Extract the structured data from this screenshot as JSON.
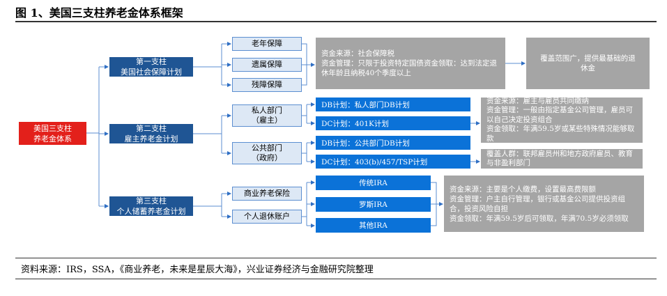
{
  "title": "图 1、美国三支柱养老金体系框架",
  "root": "美国三支柱\n养老金体系",
  "pillars": [
    {
      "line1": "第一支柱",
      "line2": "美国社会保障计划"
    },
    {
      "line1": "第二支柱",
      "line2": "雇主养老金计划"
    },
    {
      "line1": "第三支柱",
      "line2": "个人储蓄养老金计划"
    }
  ],
  "pillar1_items": [
    "老年保障",
    "遗属保障",
    "残障保障"
  ],
  "pillar1_desc": [
    "资金来源：社会保障税",
    "资金管理：只限于投资特定国债资金领取：达到法定退休年龄且纳税40个季度以上"
  ],
  "pillar1_result": "覆盖范围广，提供最基础的退休金",
  "pillar2_sectors": [
    {
      "line1": "私人部门",
      "line2": "（雇主）"
    },
    {
      "line1": "公共部门",
      "line2": "（政府）"
    }
  ],
  "pillar2_plans": [
    "DB计划：私人部门DB计划",
    "DC计划：401K计划",
    "DB计划：公共部门DB计划",
    "DC计划：403(b)/457/TSP计划"
  ],
  "pillar2_desc": [
    "资金来源：雇主与雇员共同缴纳",
    "资金管理：一般由指定基金公司管理，雇员可以自己决定投资组合",
    "资金领取：年满59.5岁或某些特殊情况能够取款"
  ],
  "pillar2_public_desc": "覆盖人群：联邦雇员州和地方政府雇员、教育与非盈利部门",
  "pillar3_items": [
    "商业养老保险",
    "个人退休账户"
  ],
  "ira_types": [
    "传统IRA",
    "罗斯IRA",
    "其他IRA"
  ],
  "pillar3_desc": [
    "资金来源：主要是个人缴费，设置最高费限额",
    "资金管理：户主自行管理，银行或基金公司提供投资组合，投资风险自担",
    "资金领取：年满59.5岁后可领取，年满70.5岁必须领取"
  ],
  "source": "资料来源：IRS，SSA，《商业养老，未来是星辰大海》，兴业证券经济与金融研究院整理",
  "colors": {
    "root": "#e3201b",
    "pillar": "#1f5594",
    "plan": "#0b72d8",
    "desc": "#a5a5a5",
    "connector": "#5b8ed0"
  }
}
